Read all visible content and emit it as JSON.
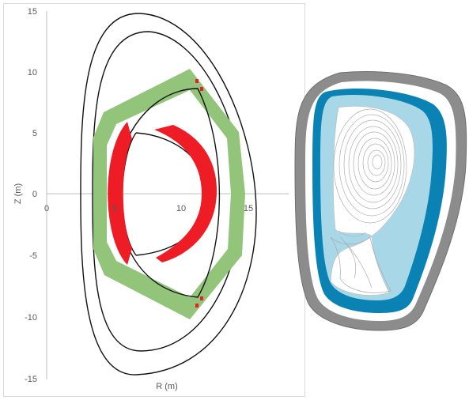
{
  "chart": {
    "xlabel": "R (m)",
    "ylabel": "Z (m)",
    "x_ticks": [
      {
        "value": 0,
        "label": "0"
      },
      {
        "value": 5,
        "label": "5"
      },
      {
        "value": 10,
        "label": "10"
      },
      {
        "value": 15,
        "label": "15"
      }
    ],
    "y_ticks": [
      {
        "value": 15,
        "label": "15"
      },
      {
        "value": 10,
        "label": "10"
      },
      {
        "value": 5,
        "label": "5"
      },
      {
        "value": 0,
        "label": "0"
      },
      {
        "value": -5,
        "label": "-5"
      },
      {
        "value": -10,
        "label": "-10"
      },
      {
        "value": -15,
        "label": "-15"
      }
    ]
  },
  "colors": {
    "outline": "#111111",
    "blanket_green": "#92c47a",
    "coil_red": "#ee1c24",
    "axis": "#bfbfbf",
    "vessel_gray": "#8c8c8c",
    "blue_dark": "#0a83b4",
    "blue_light": "#a8d8e8",
    "flux_gray": "#b0b0b0"
  }
}
